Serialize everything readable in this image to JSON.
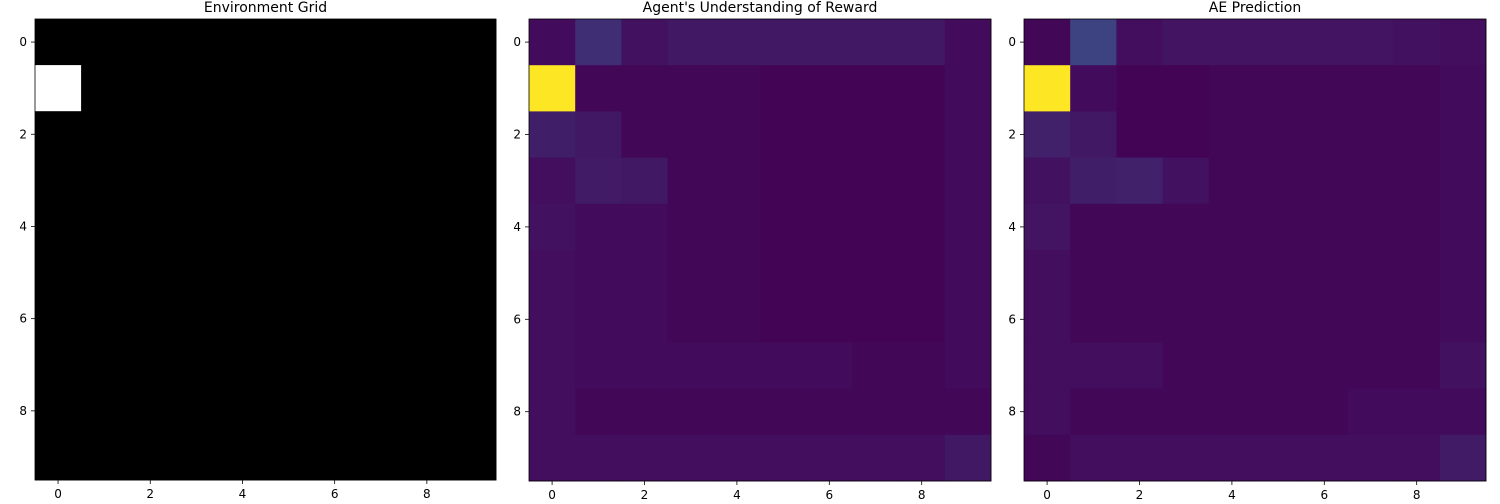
{
  "chart_data": [
    {
      "type": "heatmap",
      "title": "Environment Grid",
      "colormap": "gray",
      "vmin": 0,
      "vmax": 1,
      "x_ticks": [
        0,
        2,
        4,
        6,
        8
      ],
      "y_ticks": [
        0,
        2,
        4,
        6,
        8
      ],
      "grid": false,
      "values": [
        [
          0,
          0,
          0,
          0,
          0,
          0,
          0,
          0,
          0,
          0
        ],
        [
          1,
          0,
          0,
          0,
          0,
          0,
          0,
          0,
          0,
          0
        ],
        [
          0,
          0,
          0,
          0,
          0,
          0,
          0,
          0,
          0,
          0
        ],
        [
          0,
          0,
          0,
          0,
          0,
          0,
          0,
          0,
          0,
          0
        ],
        [
          0,
          0,
          0,
          0,
          0,
          0,
          0,
          0,
          0,
          0
        ],
        [
          0,
          0,
          0,
          0,
          0,
          0,
          0,
          0,
          0,
          0
        ],
        [
          0,
          0,
          0,
          0,
          0,
          0,
          0,
          0,
          0,
          0
        ],
        [
          0,
          0,
          0,
          0,
          0,
          0,
          0,
          0,
          0,
          0
        ],
        [
          0,
          0,
          0,
          0,
          0,
          0,
          0,
          0,
          0,
          0
        ],
        [
          0,
          0,
          0,
          0,
          0,
          0,
          0,
          0,
          0,
          0
        ]
      ]
    },
    {
      "type": "heatmap",
      "title": "Agent's Understanding of Reward",
      "colormap": "viridis",
      "vmin": 0,
      "vmax": 1,
      "x_ticks": [
        0,
        2,
        4,
        6,
        8
      ],
      "y_ticks": [
        0,
        2,
        4,
        6,
        8
      ],
      "grid": false,
      "values": [
        [
          0.03,
          0.14,
          0.05,
          0.07,
          0.07,
          0.07,
          0.07,
          0.07,
          0.07,
          0.03
        ],
        [
          1.0,
          0.02,
          0.02,
          0.02,
          0.02,
          0.01,
          0.01,
          0.01,
          0.01,
          0.03
        ],
        [
          0.09,
          0.07,
          0.02,
          0.02,
          0.02,
          0.01,
          0.01,
          0.01,
          0.01,
          0.03
        ],
        [
          0.04,
          0.08,
          0.07,
          0.02,
          0.02,
          0.01,
          0.01,
          0.01,
          0.01,
          0.03
        ],
        [
          0.05,
          0.03,
          0.03,
          0.02,
          0.02,
          0.01,
          0.01,
          0.01,
          0.01,
          0.03
        ],
        [
          0.04,
          0.03,
          0.03,
          0.02,
          0.02,
          0.01,
          0.01,
          0.01,
          0.01,
          0.03
        ],
        [
          0.04,
          0.03,
          0.03,
          0.02,
          0.02,
          0.01,
          0.01,
          0.01,
          0.01,
          0.03
        ],
        [
          0.04,
          0.03,
          0.03,
          0.03,
          0.03,
          0.03,
          0.03,
          0.02,
          0.02,
          0.03
        ],
        [
          0.04,
          0.02,
          0.02,
          0.02,
          0.02,
          0.02,
          0.02,
          0.02,
          0.02,
          0.02
        ],
        [
          0.04,
          0.04,
          0.04,
          0.04,
          0.04,
          0.04,
          0.04,
          0.04,
          0.04,
          0.07
        ]
      ]
    },
    {
      "type": "heatmap",
      "title": "AE Prediction",
      "colormap": "viridis",
      "vmin": 0,
      "vmax": 1,
      "x_ticks": [
        0,
        2,
        4,
        6,
        8
      ],
      "y_ticks": [
        0,
        2,
        4,
        6,
        8
      ],
      "grid": false,
      "values": [
        [
          0.02,
          0.2,
          0.04,
          0.06,
          0.06,
          0.06,
          0.06,
          0.06,
          0.05,
          0.04
        ],
        [
          1.0,
          0.03,
          0.01,
          0.01,
          0.02,
          0.02,
          0.02,
          0.02,
          0.02,
          0.03
        ],
        [
          0.1,
          0.07,
          0.01,
          0.01,
          0.02,
          0.02,
          0.02,
          0.02,
          0.02,
          0.03
        ],
        [
          0.05,
          0.09,
          0.1,
          0.05,
          0.02,
          0.02,
          0.02,
          0.02,
          0.02,
          0.03
        ],
        [
          0.06,
          0.02,
          0.02,
          0.02,
          0.02,
          0.02,
          0.02,
          0.02,
          0.02,
          0.03
        ],
        [
          0.04,
          0.02,
          0.02,
          0.02,
          0.02,
          0.02,
          0.02,
          0.02,
          0.02,
          0.03
        ],
        [
          0.04,
          0.02,
          0.02,
          0.02,
          0.02,
          0.02,
          0.02,
          0.02,
          0.02,
          0.03
        ],
        [
          0.04,
          0.04,
          0.04,
          0.02,
          0.02,
          0.02,
          0.02,
          0.02,
          0.02,
          0.05
        ],
        [
          0.04,
          0.02,
          0.02,
          0.02,
          0.02,
          0.02,
          0.02,
          0.03,
          0.03,
          0.03
        ],
        [
          0.02,
          0.04,
          0.04,
          0.04,
          0.04,
          0.04,
          0.04,
          0.04,
          0.04,
          0.08
        ]
      ]
    }
  ]
}
